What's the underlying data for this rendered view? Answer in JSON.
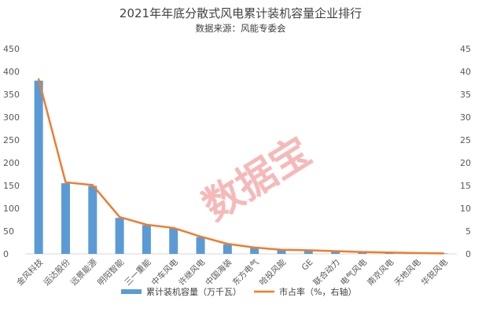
{
  "chart_data": {
    "type": "bar",
    "title": "2021年年底分散式风电累计装机容量企业排行",
    "subtitle": "数据来源：风能专委会",
    "categories": [
      "金风科技",
      "运达股份",
      "远景能源",
      "明阳智能",
      "三一重能",
      "中车风电",
      "许继风电",
      "中国海装",
      "东方电气",
      "哈投风能",
      "GE",
      "联合动力",
      "电气风电",
      "南京风电",
      "天地风电",
      "华锐风电"
    ],
    "series": [
      {
        "name": "累计装机容量（万千瓦）",
        "type": "bar",
        "axis": "left",
        "color": "#5b9bd5",
        "values": [
          380,
          155,
          149,
          79,
          63,
          56,
          37,
          21,
          13,
          8,
          8,
          6,
          3,
          2,
          2,
          1
        ]
      },
      {
        "name": "市占率（%，右轴）",
        "type": "line",
        "axis": "right",
        "color": "#ed7d31",
        "values": [
          38.3,
          15.7,
          15.1,
          8.1,
          6.4,
          5.7,
          3.8,
          2.2,
          1.4,
          0.9,
          0.8,
          0.6,
          0.4,
          0.3,
          0.2,
          0.1
        ]
      }
    ],
    "ylim_left": [
      0,
      450
    ],
    "yticks_left": [
      0,
      50,
      100,
      150,
      200,
      250,
      300,
      350,
      400,
      450
    ],
    "ylim_right": [
      0,
      45
    ],
    "yticks_right": [
      0,
      5,
      10,
      15,
      20,
      25,
      30,
      35,
      40,
      45
    ],
    "grid": false,
    "legend_position": "bottom"
  },
  "watermark": "数据宝"
}
